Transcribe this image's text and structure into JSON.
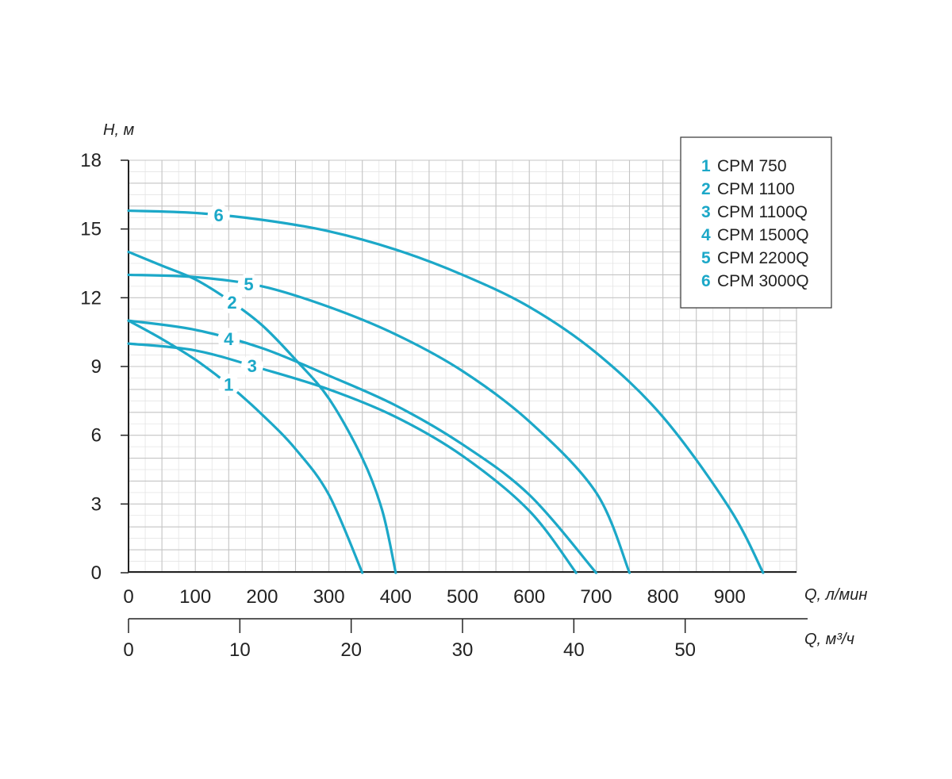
{
  "chart_data": {
    "type": "line",
    "y_axis": {
      "label": "H, м",
      "ticks": [
        "0",
        "3",
        "6",
        "9",
        "12",
        "15",
        "18"
      ],
      "ylim": [
        0,
        18
      ]
    },
    "x_axis": {
      "label": "Q, л/мин",
      "ticks": [
        "0",
        "100",
        "200",
        "300",
        "400",
        "500",
        "600",
        "700",
        "800",
        "900"
      ],
      "xlim": [
        0,
        1000
      ]
    },
    "x_axis_secondary": {
      "label": "Q, м³/ч",
      "ticks": [
        "0",
        "10",
        "20",
        "30",
        "40",
        "50"
      ],
      "xlim": [
        0,
        60
      ]
    },
    "grid": true,
    "legend_position": "top-right",
    "series_color": "#1ca8c8",
    "series": [
      {
        "id": "1",
        "name": "CPM 750",
        "label_at_x": 150,
        "points": [
          [
            0,
            11
          ],
          [
            50,
            10.2
          ],
          [
            100,
            9.3
          ],
          [
            150,
            8.2
          ],
          [
            200,
            6.9
          ],
          [
            250,
            5.4
          ],
          [
            300,
            3.4
          ],
          [
            350,
            0
          ]
        ]
      },
      {
        "id": "2",
        "name": "CPM 1100",
        "label_at_x": 155,
        "points": [
          [
            0,
            14
          ],
          [
            50,
            13.4
          ],
          [
            100,
            12.8
          ],
          [
            150,
            11.9
          ],
          [
            200,
            10.8
          ],
          [
            250,
            9.3
          ],
          [
            300,
            7.6
          ],
          [
            350,
            5.0
          ],
          [
            380,
            2.7
          ],
          [
            400,
            0
          ]
        ]
      },
      {
        "id": "3",
        "name": "CPM 1100Q",
        "label_at_x": 185,
        "points": [
          [
            0,
            10
          ],
          [
            100,
            9.7
          ],
          [
            200,
            8.9
          ],
          [
            300,
            8.0
          ],
          [
            400,
            6.8
          ],
          [
            500,
            5.1
          ],
          [
            600,
            2.7
          ],
          [
            670,
            0
          ]
        ]
      },
      {
        "id": "4",
        "name": "CPM 1500Q",
        "label_at_x": 150,
        "points": [
          [
            0,
            11
          ],
          [
            100,
            10.6
          ],
          [
            200,
            9.8
          ],
          [
            300,
            8.6
          ],
          [
            400,
            7.3
          ],
          [
            500,
            5.6
          ],
          [
            600,
            3.4
          ],
          [
            700,
            0
          ]
        ]
      },
      {
        "id": "5",
        "name": "CPM 2200Q",
        "label_at_x": 180,
        "points": [
          [
            0,
            13
          ],
          [
            100,
            12.9
          ],
          [
            200,
            12.5
          ],
          [
            300,
            11.6
          ],
          [
            400,
            10.4
          ],
          [
            500,
            8.8
          ],
          [
            600,
            6.6
          ],
          [
            700,
            3.5
          ],
          [
            750,
            0
          ]
        ]
      },
      {
        "id": "6",
        "name": "CPM 3000Q",
        "label_at_x": 135,
        "points": [
          [
            0,
            15.8
          ],
          [
            100,
            15.7
          ],
          [
            200,
            15.4
          ],
          [
            300,
            14.9
          ],
          [
            400,
            14.1
          ],
          [
            500,
            13.0
          ],
          [
            600,
            11.6
          ],
          [
            700,
            9.6
          ],
          [
            800,
            6.8
          ],
          [
            900,
            2.8
          ],
          [
            950,
            0
          ]
        ]
      }
    ]
  }
}
